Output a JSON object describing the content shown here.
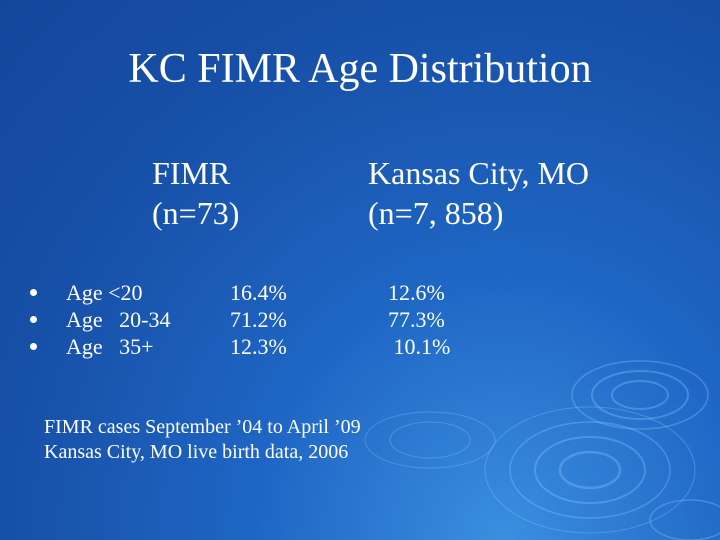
{
  "title": "KC FIMR Age Distribution",
  "columns": {
    "fimr": {
      "label": "FIMR",
      "n": "(n=73)"
    },
    "kc": {
      "label": "Kansas City, MO",
      "n": "(n=7, 858)"
    }
  },
  "rows": [
    {
      "label": "Age <20",
      "fimr": "16.4%",
      "kc": "12.6%"
    },
    {
      "label": "Age   20-34",
      "fimr": "71.2%",
      "kc": "77.3%"
    },
    {
      "label": "Age   35+",
      "fimr": "12.3%",
      "kc": " 10.1%"
    }
  ],
  "notes": [
    "FIMR cases September ’04 to April ’09",
    "Kansas City, MO live birth data, 2006"
  ]
}
